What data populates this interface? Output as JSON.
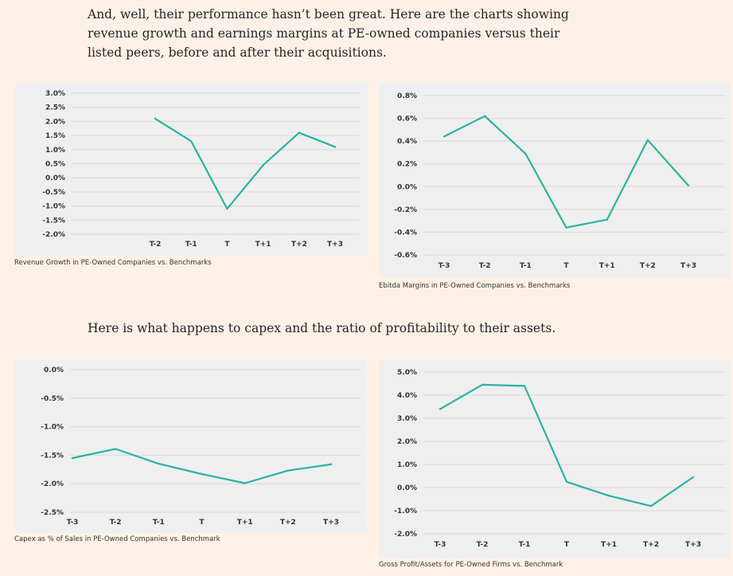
{
  "text": {
    "intro_line1": "And, well, their performance hasn’t been great. Here are the charts showing",
    "intro_line2": "revenue growth and earnings margins at PE-owned companies versus their",
    "intro_line3": "listed peers, before and after their acquisitions.",
    "middle": "Here is what happens to capex and the ratio of profitability to their assets."
  },
  "colors": {
    "line": "#2bb3a3",
    "grid": "#d9d9d9",
    "panel": "#efefef",
    "background": "#fdf1e7"
  },
  "chart_data": [
    {
      "type": "line",
      "caption": "Revenue Growth in PE-Owned Companies vs. Benchmarks",
      "categories": [
        "T-2",
        "T-1",
        "T",
        "T+1",
        "T+2",
        "T+3"
      ],
      "values": [
        2.1,
        1.3,
        -1.1,
        0.45,
        1.6,
        1.1
      ],
      "ylim": [
        -2.0,
        3.0
      ],
      "yticks": [
        -2.0,
        -1.5,
        -1.0,
        -0.5,
        0.0,
        0.5,
        1.0,
        1.5,
        2.0,
        2.5,
        3.0
      ],
      "ytick_labels": [
        "-2.0%",
        "-1.5%",
        "-1.0%",
        "-0.5%",
        "0.0%",
        "0.5%",
        "1.0%",
        "1.5%",
        "2.0%",
        "2.5%",
        "3.0%"
      ],
      "grid": true
    },
    {
      "type": "line",
      "caption": "Ebitda Margins in PE-Owned Companies vs. Benchmarks",
      "categories": [
        "T-3",
        "T-2",
        "T-1",
        "T",
        "T+1",
        "T+2",
        "T+3"
      ],
      "values": [
        0.44,
        0.62,
        0.29,
        -0.36,
        -0.29,
        0.41,
        0.01
      ],
      "ylim": [
        -0.6,
        0.8
      ],
      "yticks": [
        -0.6,
        -0.4,
        -0.2,
        0.0,
        0.2,
        0.4,
        0.6,
        0.8
      ],
      "ytick_labels": [
        "-0.6%",
        "-0.4%",
        "-0.2%",
        "0.0%",
        "0.2%",
        "0.4%",
        "0.6%",
        "0.8%"
      ],
      "grid": true
    },
    {
      "type": "line",
      "caption": "Capex as % of Sales in PE-Owned Companies vs. Benchmark",
      "categories": [
        "T-3",
        "T-2",
        "T-1",
        "T",
        "T+1",
        "T+2",
        "T+3"
      ],
      "values": [
        -1.55,
        -1.39,
        -1.65,
        -1.83,
        -1.99,
        -1.77,
        -1.66
      ],
      "ylim": [
        -2.5,
        0.0
      ],
      "yticks": [
        -2.5,
        -2.0,
        -1.5,
        -1.0,
        -0.5,
        0.0
      ],
      "ytick_labels": [
        "-2.5%",
        "-2.0%",
        "-1.5%",
        "-1.0%",
        "-0.5%",
        "0.0%"
      ],
      "grid": true
    },
    {
      "type": "line",
      "caption": "Gross Profit/Assets for PE-Owned Firms vs. Benchmark",
      "categories": [
        "T-3",
        "T-2",
        "T-1",
        "T",
        "T+1",
        "T+2",
        "T+3"
      ],
      "values": [
        3.4,
        4.45,
        4.4,
        0.25,
        -0.35,
        -0.8,
        0.45
      ],
      "ylim": [
        -2.0,
        5.0
      ],
      "yticks": [
        -2.0,
        -1.0,
        0.0,
        1.0,
        2.0,
        3.0,
        4.0,
        5.0
      ],
      "ytick_labels": [
        "-2.0%",
        "-1.0%",
        "0.0%",
        "1.0%",
        "2.0%",
        "3.0%",
        "4.0%",
        "5.0%"
      ],
      "grid": true
    }
  ]
}
